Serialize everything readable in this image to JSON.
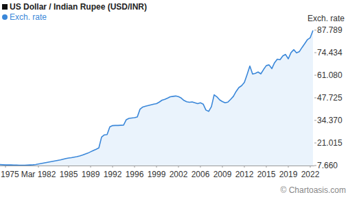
{
  "chart_data": {
    "type": "area",
    "title": "US Dollar / Indian Rupee (USD/INR)",
    "y_label": "Exch. rate",
    "annotations": [
      "© Chartoasis.com"
    ],
    "categories": [
      null,
      null,
      "1975",
      null,
      null,
      null,
      null,
      null,
      null,
      null,
      null,
      null,
      null,
      null,
      "Mar 1982",
      null,
      null,
      null,
      null,
      null,
      null,
      null,
      null,
      null,
      null,
      "1985",
      null,
      null,
      null,
      null,
      null,
      null,
      null,
      "1989",
      null,
      null,
      null,
      null,
      null,
      null,
      null,
      "1992",
      null,
      null,
      null,
      null,
      null,
      null,
      null,
      "1996",
      null,
      null,
      null,
      null,
      null,
      null,
      null,
      "1999",
      null,
      null,
      null,
      null,
      null,
      null,
      null,
      "2002",
      null,
      null,
      null,
      null,
      null,
      null,
      null,
      "2006",
      null,
      null,
      null,
      null,
      null,
      null,
      null,
      "2009",
      null,
      null,
      null,
      null,
      null,
      null,
      null,
      "2012",
      null,
      null,
      null,
      null,
      null,
      null,
      null,
      "2015",
      null,
      null,
      null,
      null,
      null,
      null,
      null,
      "2019",
      null,
      null,
      null,
      null,
      null,
      null,
      null,
      "2022",
      null
    ],
    "series": [
      {
        "name": "Exch. rate",
        "color": "#3a87d9",
        "values": [
          8.2,
          8.1,
          8.0,
          8.0,
          8.0,
          7.9,
          7.9,
          7.8,
          7.8,
          7.8,
          7.9,
          8.0,
          8.1,
          8.3,
          8.6,
          8.9,
          9.2,
          9.5,
          9.8,
          10.1,
          10.4,
          10.7,
          11.0,
          11.4,
          11.8,
          12.1,
          12.3,
          12.6,
          12.9,
          13.3,
          13.8,
          14.4,
          15.0,
          15.8,
          16.6,
          17.3,
          18.1,
          24.5,
          25.8,
          26.0,
          30.5,
          31.3,
          31.4,
          31.4,
          31.5,
          31.6,
          34.8,
          35.6,
          35.8,
          36.0,
          36.4,
          41.0,
          42.3,
          42.8,
          43.2,
          43.6,
          44.0,
          44.3,
          45.2,
          46.3,
          46.8,
          47.5,
          48.3,
          48.6,
          48.8,
          48.4,
          47.6,
          46.2,
          45.4,
          45.1,
          45.3,
          44.8,
          44.3,
          44.8,
          44.0,
          40.5,
          39.7,
          42.5,
          49.5,
          48.3,
          46.5,
          45.5,
          44.8,
          45.2,
          46.8,
          48.6,
          51.5,
          53.8,
          54.9,
          56.8,
          61.5,
          66.5,
          61.8,
          62.2,
          63.0,
          61.9,
          64.5,
          66.8,
          67.2,
          65.0,
          68.5,
          70.6,
          70.3,
          72.5,
          73.4,
          70.8,
          74.5,
          76.2,
          74.3,
          75.0,
          77.5,
          79.8,
          82.2,
          83.3,
          87.6
        ]
      }
    ],
    "ylim": [
      7.66,
      87.789
    ],
    "yticks": [
      {
        "value": 7.66,
        "label": "7.660"
      },
      21.015,
      {
        "value": 34.37,
        "label": "34.370"
      },
      47.725,
      {
        "value": 61.08,
        "label": "61.080"
      },
      74.434,
      87.789
    ],
    "grid": false,
    "legend": "top-left"
  }
}
